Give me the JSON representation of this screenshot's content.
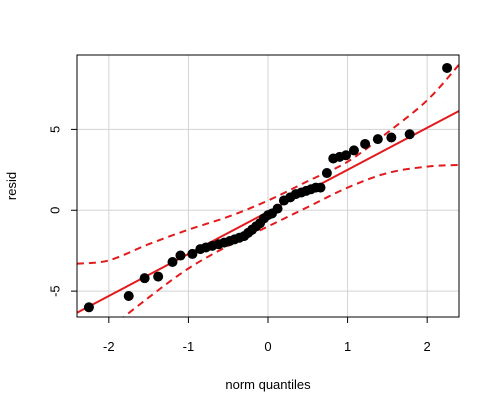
{
  "chart_data": {
    "type": "scatter",
    "title": "",
    "xlabel": "norm quantiles",
    "ylabel": "resid",
    "xlim": [
      -2.4,
      2.4
    ],
    "ylim": [
      -6.6,
      9.6
    ],
    "grid": true,
    "x_ticks": [
      -2,
      -1,
      0,
      1,
      2
    ],
    "x_tick_labels": [
      "-2",
      "-1",
      "0",
      "1",
      "2"
    ],
    "y_ticks": [
      -5,
      0,
      5
    ],
    "y_tick_labels": [
      "-5",
      "0",
      "5"
    ],
    "points": [
      {
        "x": -2.25,
        "y": -6.0
      },
      {
        "x": -1.75,
        "y": -5.3
      },
      {
        "x": -1.55,
        "y": -4.2
      },
      {
        "x": -1.38,
        "y": -4.1
      },
      {
        "x": -1.2,
        "y": -3.2
      },
      {
        "x": -1.1,
        "y": -2.8
      },
      {
        "x": -0.95,
        "y": -2.7
      },
      {
        "x": -0.85,
        "y": -2.4
      },
      {
        "x": -0.78,
        "y": -2.3
      },
      {
        "x": -0.7,
        "y": -2.2
      },
      {
        "x": -0.62,
        "y": -2.1
      },
      {
        "x": -0.55,
        "y": -2.0
      },
      {
        "x": -0.48,
        "y": -1.9
      },
      {
        "x": -0.42,
        "y": -1.8
      },
      {
        "x": -0.36,
        "y": -1.7
      },
      {
        "x": -0.3,
        "y": -1.6
      },
      {
        "x": -0.25,
        "y": -1.4
      },
      {
        "x": -0.2,
        "y": -1.2
      },
      {
        "x": -0.15,
        "y": -1.0
      },
      {
        "x": -0.1,
        "y": -0.8
      },
      {
        "x": -0.05,
        "y": -0.5
      },
      {
        "x": 0.0,
        "y": -0.3
      },
      {
        "x": 0.05,
        "y": -0.2
      },
      {
        "x": 0.12,
        "y": 0.1
      },
      {
        "x": 0.2,
        "y": 0.6
      },
      {
        "x": 0.28,
        "y": 0.8
      },
      {
        "x": 0.35,
        "y": 1.0
      },
      {
        "x": 0.42,
        "y": 1.1
      },
      {
        "x": 0.48,
        "y": 1.2
      },
      {
        "x": 0.54,
        "y": 1.3
      },
      {
        "x": 0.6,
        "y": 1.4
      },
      {
        "x": 0.66,
        "y": 1.4
      },
      {
        "x": 0.74,
        "y": 2.3
      },
      {
        "x": 0.82,
        "y": 3.2
      },
      {
        "x": 0.9,
        "y": 3.3
      },
      {
        "x": 0.98,
        "y": 3.4
      },
      {
        "x": 1.08,
        "y": 3.7
      },
      {
        "x": 1.22,
        "y": 4.1
      },
      {
        "x": 1.38,
        "y": 4.4
      },
      {
        "x": 1.55,
        "y": 4.5
      },
      {
        "x": 1.78,
        "y": 4.7
      },
      {
        "x": 2.25,
        "y": 8.8
      }
    ],
    "reference_line": {
      "intercept": -0.1,
      "slope": 2.6
    },
    "confidence_upper": [
      {
        "x": -2.4,
        "y": -3.3
      },
      {
        "x": -2.0,
        "y": -3.1
      },
      {
        "x": -1.5,
        "y": -2.1
      },
      {
        "x": -1.0,
        "y": -1.2
      },
      {
        "x": -0.5,
        "y": -0.4
      },
      {
        "x": 0.0,
        "y": 0.6
      },
      {
        "x": 0.5,
        "y": 1.8
      },
      {
        "x": 1.0,
        "y": 3.0
      },
      {
        "x": 1.5,
        "y": 4.8
      },
      {
        "x": 2.0,
        "y": 6.8
      },
      {
        "x": 2.4,
        "y": 9.0
      }
    ],
    "confidence_lower": [
      {
        "x": -2.4,
        "y": -9.5
      },
      {
        "x": -2.0,
        "y": -7.4
      },
      {
        "x": -1.5,
        "y": -5.4
      },
      {
        "x": -1.0,
        "y": -3.6
      },
      {
        "x": -0.5,
        "y": -2.2
      },
      {
        "x": 0.0,
        "y": -1.0
      },
      {
        "x": 0.5,
        "y": 0.2
      },
      {
        "x": 1.0,
        "y": 1.4
      },
      {
        "x": 1.5,
        "y": 2.3
      },
      {
        "x": 2.0,
        "y": 2.7
      },
      {
        "x": 2.4,
        "y": 2.8
      }
    ],
    "colors": {
      "points": "#000000",
      "reference_line": "#e31a1c",
      "confidence_band": "#e31a1c",
      "grid": "#d3d3d3",
      "frame": "#000000"
    }
  }
}
